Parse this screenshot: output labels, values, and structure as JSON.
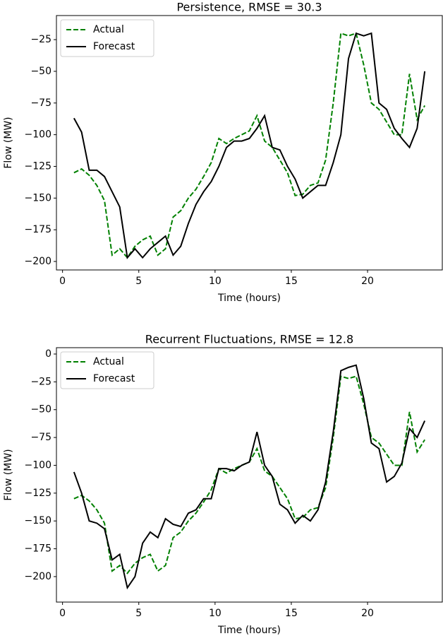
{
  "chart_data": [
    {
      "type": "line",
      "title": "Persistence, RMSE = 30.3",
      "xlabel": "Time (hours)",
      "ylabel": "Flow (MW)",
      "x": [
        0.75,
        1.25,
        1.75,
        2.25,
        2.75,
        3.25,
        3.75,
        4.25,
        4.75,
        5.25,
        5.75,
        6.25,
        6.75,
        7.25,
        7.75,
        8.25,
        8.75,
        9.25,
        9.75,
        10.25,
        10.75,
        11.25,
        11.75,
        12.25,
        12.75,
        13.25,
        13.75,
        14.25,
        14.75,
        15.25,
        15.75,
        16.25,
        16.75,
        17.25,
        17.75,
        18.25,
        18.75,
        19.25,
        19.75,
        20.25,
        20.75,
        21.25,
        21.75,
        22.25,
        22.75,
        23.25,
        23.75
      ],
      "series": [
        {
          "name": "Actual",
          "color": "#008000",
          "linestyle": "dashed",
          "values": [
            -130,
            -127,
            -132,
            -140,
            -152,
            -195,
            -190,
            -197,
            -188,
            -183,
            -180,
            -195,
            -190,
            -165,
            -160,
            -150,
            -143,
            -133,
            -122,
            -103,
            -107,
            -103,
            -100,
            -97,
            -85,
            -105,
            -110,
            -120,
            -130,
            -148,
            -147,
            -140,
            -138,
            -120,
            -75,
            -20,
            -22,
            -20,
            -45,
            -75,
            -80,
            -90,
            -100,
            -100,
            -52,
            -88,
            -77
          ]
        },
        {
          "name": "Forecast",
          "color": "#000000",
          "linestyle": "solid",
          "values": [
            -87,
            -98,
            -128,
            -128,
            -133,
            -145,
            -157,
            -197,
            -190,
            -197,
            -190,
            -185,
            -180,
            -195,
            -188,
            -170,
            -155,
            -145,
            -137,
            -125,
            -110,
            -105,
            -105,
            -103,
            -95,
            -85,
            -110,
            -112,
            -125,
            -135,
            -150,
            -145,
            -140,
            -140,
            -122,
            -100,
            -40,
            -20,
            -22,
            -20,
            -75,
            -80,
            -95,
            -103,
            -110,
            -95,
            -50
          ]
        }
      ],
      "xlim": [
        -0.4,
        24.9
      ],
      "xticks": [
        0,
        5,
        10,
        15,
        20
      ],
      "ylim": [
        -206.7,
        -6
      ],
      "yticks": [
        {
          "value": -200,
          "label": "−200"
        },
        {
          "value": -175,
          "label": "−175"
        },
        {
          "value": -150,
          "label": "−150"
        },
        {
          "value": -125,
          "label": "−125"
        },
        {
          "value": -100,
          "label": "−100"
        },
        {
          "value": -75,
          "label": "−75"
        },
        {
          "value": -50,
          "label": "−50"
        },
        {
          "value": -25,
          "label": "−25"
        }
      ],
      "legend": "upper left"
    },
    {
      "type": "line",
      "title": "Recurrent Fluctuations, RMSE = 12.8",
      "xlabel": "Time (hours)",
      "ylabel": "Flow (MW)",
      "x": [
        0.75,
        1.25,
        1.75,
        2.25,
        2.75,
        3.25,
        3.75,
        4.25,
        4.75,
        5.25,
        5.75,
        6.25,
        6.75,
        7.25,
        7.75,
        8.25,
        8.75,
        9.25,
        9.75,
        10.25,
        10.75,
        11.25,
        11.75,
        12.25,
        12.75,
        13.25,
        13.75,
        14.25,
        14.75,
        15.25,
        15.75,
        16.25,
        16.75,
        17.25,
        17.75,
        18.25,
        18.75,
        19.25,
        19.75,
        20.25,
        20.75,
        21.25,
        21.75,
        22.25,
        22.75,
        23.25,
        23.75
      ],
      "series": [
        {
          "name": "Actual",
          "color": "#008000",
          "linestyle": "dashed",
          "values": [
            -130,
            -127,
            -132,
            -140,
            -152,
            -195,
            -190,
            -197,
            -188,
            -183,
            -180,
            -195,
            -190,
            -165,
            -160,
            -150,
            -143,
            -133,
            -122,
            -103,
            -107,
            -103,
            -100,
            -97,
            -85,
            -105,
            -110,
            -120,
            -130,
            -148,
            -147,
            -140,
            -138,
            -120,
            -75,
            -20,
            -22,
            -20,
            -45,
            -75,
            -80,
            -90,
            -100,
            -100,
            -52,
            -88,
            -77
          ]
        },
        {
          "name": "Forecast",
          "color": "#000000",
          "linestyle": "solid",
          "values": [
            -106,
            -125,
            -150,
            -152,
            -157,
            -185,
            -180,
            -210,
            -200,
            -170,
            -160,
            -165,
            -148,
            -153,
            -155,
            -143,
            -140,
            -130,
            -130,
            -103,
            -103,
            -105,
            -100,
            -97,
            -70,
            -100,
            -110,
            -135,
            -140,
            -152,
            -145,
            -150,
            -140,
            -115,
            -70,
            -15,
            -12,
            -10,
            -40,
            -80,
            -85,
            -115,
            -110,
            -98,
            -67,
            -75,
            -60
          ]
        }
      ],
      "xlim": [
        -0.4,
        24.9
      ],
      "xticks": [
        0,
        5,
        10,
        15,
        20
      ],
      "ylim": [
        -222.9,
        5.7
      ],
      "yticks": [
        {
          "value": -200,
          "label": "−200"
        },
        {
          "value": -175,
          "label": "−175"
        },
        {
          "value": -150,
          "label": "−150"
        },
        {
          "value": -125,
          "label": "−125"
        },
        {
          "value": -100,
          "label": "−100"
        },
        {
          "value": -75,
          "label": "−75"
        },
        {
          "value": -50,
          "label": "−50"
        },
        {
          "value": -25,
          "label": "−25"
        },
        0
      ],
      "legend": "upper left"
    }
  ]
}
